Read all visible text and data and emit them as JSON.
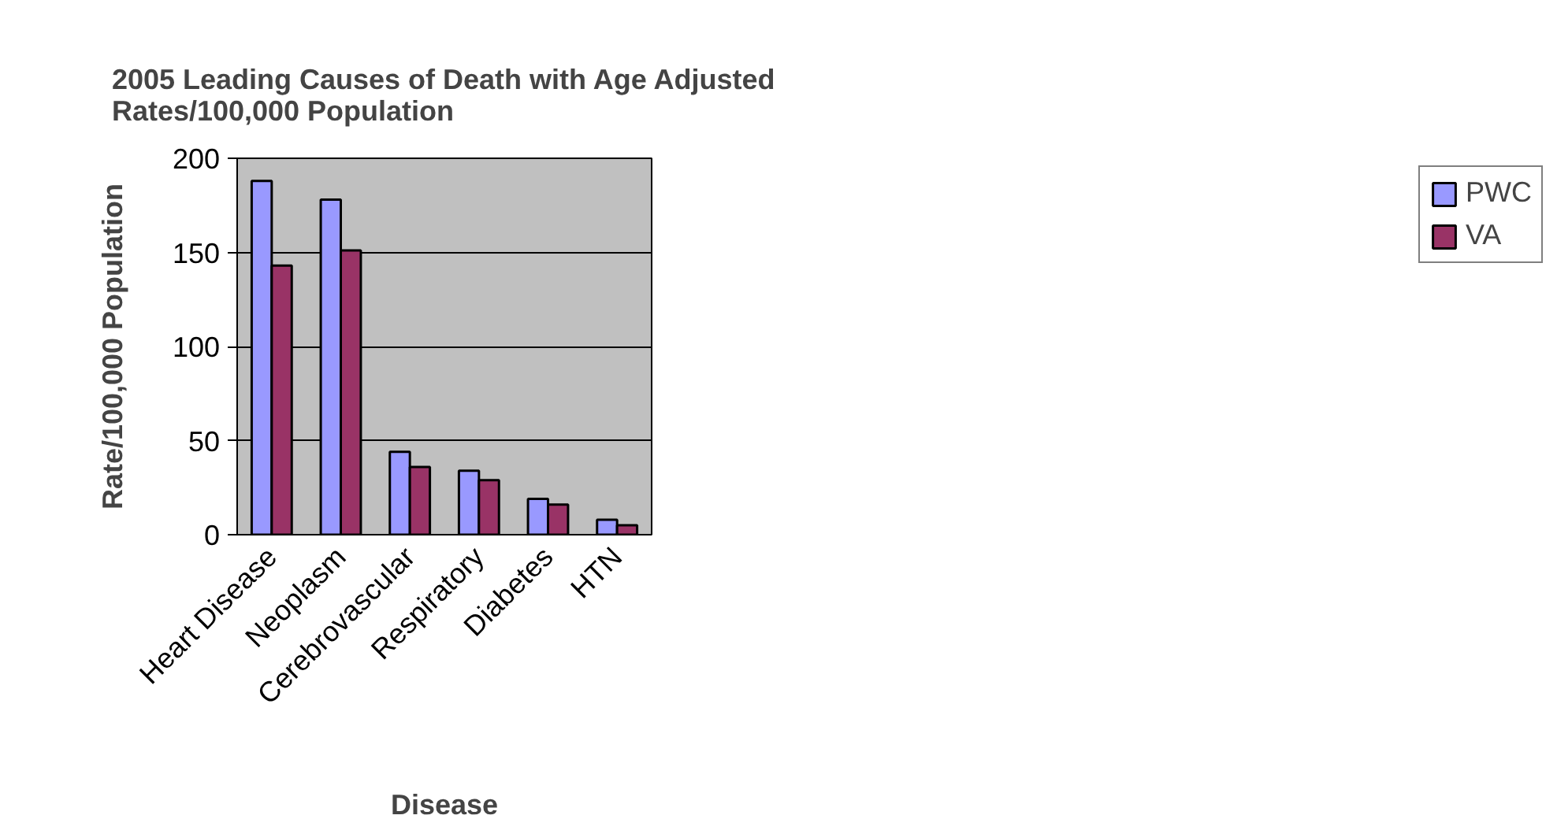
{
  "chart_data": {
    "type": "bar",
    "title": "2005 Leading Causes of Death with Age Adjusted\nRates/100,000 Population",
    "xlabel": "Disease",
    "ylabel": "Rate/100,000 Population",
    "categories": [
      "Heart Disease",
      "Neoplasm",
      "Cerebrovascular",
      "Respiratory",
      "Diabetes",
      "HTN"
    ],
    "series": [
      {
        "name": "PWC",
        "color": "#9999ff",
        "values": [
          188,
          178,
          44,
          34,
          19,
          8
        ]
      },
      {
        "name": "VA",
        "color": "#993366",
        "values": [
          143,
          151,
          36,
          29,
          16,
          5
        ]
      }
    ],
    "ylim": [
      0,
      200
    ],
    "yticks": [
      0,
      50,
      100,
      150,
      200
    ],
    "grid": "y",
    "legend": "right"
  }
}
